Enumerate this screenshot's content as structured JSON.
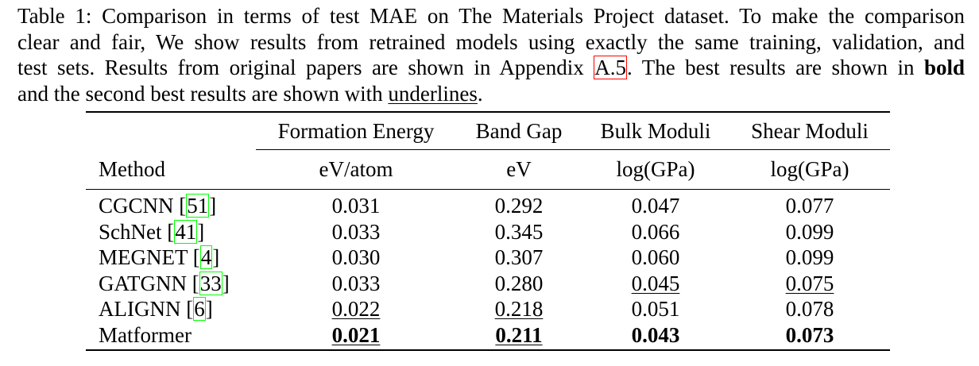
{
  "caption": {
    "line1": "Table 1: Comparison in terms of test MAE on The Materials Project dataset. To make the comparison",
    "line2": "clear and fair, We show results from retrained models using exactly the same training, validation, and",
    "line3_pre": "test sets. Results from original papers are shown in Appendix ",
    "line3_ref": "A.5",
    "line3_post": ". The best results are shown in ",
    "line3_bold": "bold",
    "line4_pre": "and the second best results are shown with ",
    "line4_u": "underlines",
    "line4_post": "."
  },
  "table": {
    "header_method": "Method",
    "columns": [
      {
        "name": "Formation Energy",
        "unit": "eV/atom"
      },
      {
        "name": "Band Gap",
        "unit": "eV"
      },
      {
        "name": "Bulk Moduli",
        "unit": "log(GPa)"
      },
      {
        "name": "Shear Moduli",
        "unit": "log(GPa)"
      }
    ],
    "rows": [
      {
        "method": "CGCNN ",
        "ref": "51",
        "values": [
          "0.031",
          "0.292",
          "0.047",
          "0.077"
        ]
      },
      {
        "method": "SchNet ",
        "ref": "41",
        "values": [
          "0.033",
          "0.345",
          "0.066",
          "0.099"
        ]
      },
      {
        "method": "MEGNET ",
        "ref": "4",
        "values": [
          "0.030",
          "0.307",
          "0.060",
          "0.099"
        ]
      },
      {
        "method": "GATGNN ",
        "ref": "33",
        "values": [
          "0.033",
          "0.280",
          "0.045",
          "0.075"
        ]
      },
      {
        "method": "ALIGNN ",
        "ref": "6",
        "values": [
          "0.022",
          "0.218",
          "0.051",
          "0.078"
        ]
      },
      {
        "method": "Matformer",
        "ref": "",
        "values": [
          "0.021",
          "0.211",
          "0.043",
          "0.073"
        ]
      }
    ]
  }
}
